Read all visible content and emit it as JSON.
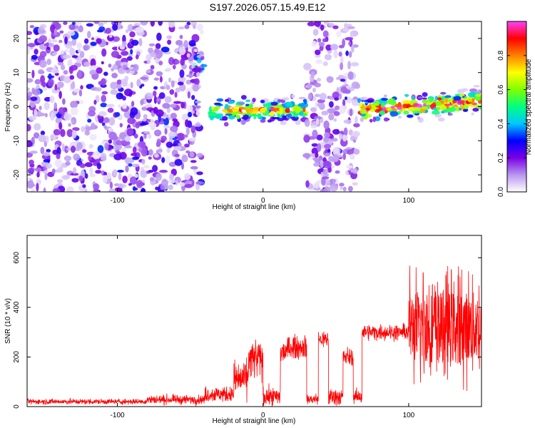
{
  "figure": {
    "title": "S197.2026.057.15.49.E12"
  },
  "chart_data": [
    {
      "type": "heatmap",
      "title": "S197.2026.057.15.49.E12",
      "xlabel": "Height of straight line (km)",
      "ylabel": "Frequency (Hz)",
      "xlim": [
        -162,
        150
      ],
      "ylim": [
        -25,
        25
      ],
      "xticks": [
        -100,
        0,
        100
      ],
      "yticks": [
        -20,
        -10,
        0,
        10,
        20
      ],
      "colorbar": {
        "label": "Normalized spectral amplitude",
        "range": [
          0.0,
          1.0
        ],
        "ticks": [
          "0.0",
          "0.2",
          "0.4",
          "0.6",
          "0.8"
        ],
        "colors": [
          "#ffffff",
          "#b896f0",
          "#7a00e6",
          "#0000ff",
          "#00c8ff",
          "#00ff80",
          "#80ff00",
          "#ffff00",
          "#ff8000",
          "#ff0000",
          "#ff40ff"
        ]
      },
      "regions": [
        {
          "name": "noise-left",
          "x_start": -162,
          "x_end": -42,
          "freq_spread_hz": 25,
          "amplitude": 0.15
        },
        {
          "name": "burst",
          "x_start": -47,
          "x_end": -40,
          "freq_center_hz": 12,
          "amplitude": 0.35
        },
        {
          "name": "signal-band-1",
          "x_start": -38,
          "x_end": 30,
          "freq_center_hz": -1,
          "amplitude": 0.75
        },
        {
          "name": "noise-gap",
          "x_start": 30,
          "x_end": 65,
          "freq_spread_hz": 25,
          "amplitude": 0.12
        },
        {
          "name": "signal-band-2",
          "x_start": 66,
          "x_end": 150,
          "freq_center_hz": -1,
          "freq_slope_hz_per_km": 0.03,
          "amplitude": 0.9
        }
      ]
    },
    {
      "type": "line",
      "title": "",
      "xlabel": "Height of straight line (km)",
      "ylabel": "SNR (10 * v/v)",
      "xlim": [
        -162,
        150
      ],
      "ylim": [
        0,
        690
      ],
      "xticks": [
        -100,
        0,
        100
      ],
      "yticks": [
        0,
        200,
        400,
        600
      ],
      "color": "#ff0000",
      "series": [
        {
          "name": "SNR",
          "segments": [
            {
              "x_start": -162,
              "x_end": -80,
              "base": 20,
              "noise": 12
            },
            {
              "x_start": -80,
              "x_end": -40,
              "base": 28,
              "noise": 20
            },
            {
              "x_start": -40,
              "x_end": -20,
              "base": 50,
              "noise": 35
            },
            {
              "x_start": -20,
              "x_end": -10,
              "base": 110,
              "noise": 80
            },
            {
              "x_start": -10,
              "x_end": 0,
              "base": 190,
              "noise": 90
            },
            {
              "x_start": 0,
              "x_end": 12,
              "base": 40,
              "noise": 40
            },
            {
              "x_start": 12,
              "x_end": 17,
              "base": 220,
              "noise": 60
            },
            {
              "x_start": 17,
              "x_end": 30,
              "base": 240,
              "noise": 50
            },
            {
              "x_start": 30,
              "x_end": 38,
              "base": 30,
              "noise": 25
            },
            {
              "x_start": 38,
              "x_end": 45,
              "base": 270,
              "noise": 40
            },
            {
              "x_start": 45,
              "x_end": 55,
              "base": 40,
              "noise": 40
            },
            {
              "x_start": 55,
              "x_end": 62,
              "base": 200,
              "noise": 40
            },
            {
              "x_start": 62,
              "x_end": 68,
              "base": 40,
              "noise": 30
            },
            {
              "x_start": 68,
              "x_end": 100,
              "base": 300,
              "noise": 35
            },
            {
              "x_start": 100,
              "x_end": 150,
              "base": 320,
              "noise": 260
            }
          ]
        }
      ]
    }
  ]
}
